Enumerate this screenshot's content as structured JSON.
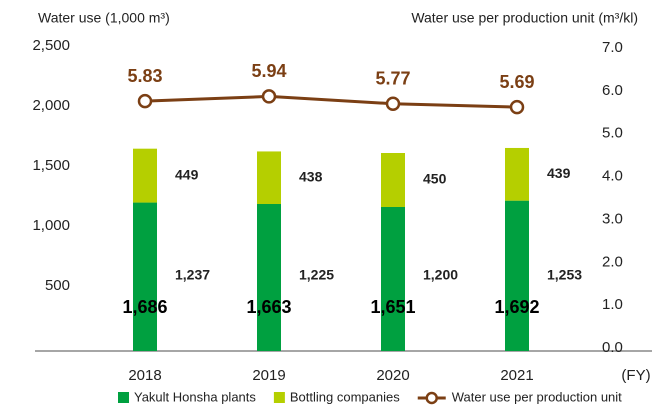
{
  "chart_data": {
    "type": "bar",
    "y_axis_label": "Water use (1,000 m³)",
    "y2_axis_label": "Water use per production unit (m³/kl)",
    "x_unit_label": "(FY)",
    "categories": [
      "2018",
      "2019",
      "2020",
      "2021"
    ],
    "series": [
      {
        "name": "Yakult Honsha plants",
        "color": "#00a040",
        "type": "bar",
        "values": [
          1237,
          1225,
          1200,
          1253
        ],
        "value_labels": [
          "1,237",
          "1,225",
          "1,200",
          "1,253"
        ]
      },
      {
        "name": "Bottling companies",
        "color": "#b5cf00",
        "type": "bar",
        "values": [
          449,
          438,
          450,
          439
        ]
      },
      {
        "name": "Water use per production unit",
        "color": "#7b3f14",
        "type": "line",
        "axis": "y2",
        "values": [
          5.83,
          5.94,
          5.77,
          5.69
        ]
      }
    ],
    "totals": [
      1686,
      1663,
      1651,
      1692
    ],
    "total_labels": [
      "1,686",
      "1,663",
      "1,651",
      "1,692"
    ],
    "ylim": [
      0,
      2500
    ],
    "yticks": [
      {
        "value": 500,
        "label": "500"
      },
      {
        "value": 1000,
        "label": "1,000"
      },
      {
        "value": 1500,
        "label": "1,500"
      },
      {
        "value": 2000,
        "label": "2,000"
      },
      {
        "value": 2500,
        "label": "2,500"
      }
    ],
    "y2lim": [
      0,
      7
    ],
    "y2ticks": [
      {
        "value": 0,
        "label": "0.0"
      },
      {
        "value": 1,
        "label": "1.0"
      },
      {
        "value": 2,
        "label": "2.0"
      },
      {
        "value": 3,
        "label": "3.0"
      },
      {
        "value": 4,
        "label": "4.0"
      },
      {
        "value": 5,
        "label": "5.0"
      },
      {
        "value": 6,
        "label": "6.0"
      },
      {
        "value": 7,
        "label": "7.0"
      }
    ],
    "grid": false
  }
}
